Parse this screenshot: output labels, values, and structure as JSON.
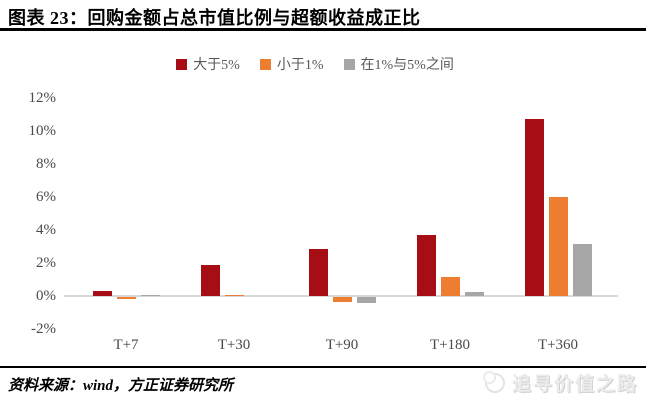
{
  "header": {
    "title": "图表 23：回购金额占总市值比例与超额收益成正比"
  },
  "chart_data": {
    "type": "bar",
    "title": "回购金额占总市值比例与超额收益成正比",
    "categories": [
      "T+7",
      "T+30",
      "T+90",
      "T+180",
      "T+360"
    ],
    "series": [
      {
        "name": "大于5%",
        "color": "#A60D14",
        "values": [
          0.3,
          1.85,
          2.85,
          3.7,
          10.7
        ]
      },
      {
        "name": "小于1%",
        "color": "#ED7D31",
        "values": [
          -0.15,
          0.05,
          -0.3,
          1.15,
          6.0
        ]
      },
      {
        "name": "在1%与5%之间",
        "color": "#A6A6A6",
        "values": [
          0.05,
          0.0,
          -0.35,
          0.25,
          3.15
        ]
      }
    ],
    "ylim": [
      -2,
      12
    ],
    "ytick_step": 2,
    "ytick_labels": [
      "12%",
      "10%",
      "8%",
      "6%",
      "4%",
      "2%",
      "0%",
      "-2%"
    ],
    "grid": false,
    "legend_position": "top",
    "axis_color": "#D9D9D9",
    "label_color": "#4A4A4A"
  },
  "footer": {
    "source": "资料来源：wind，方正证券研究所"
  },
  "watermark": {
    "text": "追寻价值之路"
  }
}
